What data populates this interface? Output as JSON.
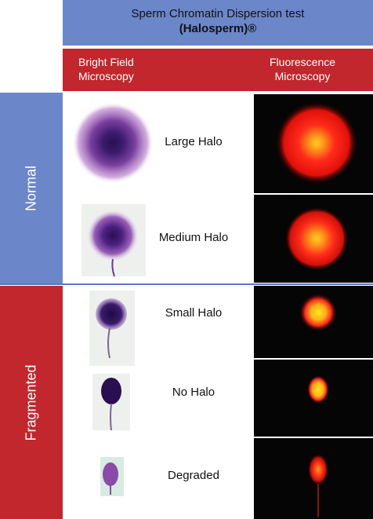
{
  "title": {
    "line1": "Sperm Chromatin Dispersion test",
    "line2": "(Halosperm)®"
  },
  "columns": {
    "bright_field": [
      "Bright Field",
      "Microscopy"
    ],
    "fluorescence": [
      "Fluorescence",
      "Microscopy"
    ]
  },
  "groups": {
    "normal": "Normal",
    "fragmented": "Fragmented"
  },
  "rows": [
    {
      "label": "Large Halo"
    },
    {
      "label": "Medium Halo"
    },
    {
      "label": "Small Halo"
    },
    {
      "label": "No Halo"
    },
    {
      "label": "Degraded"
    }
  ],
  "colors": {
    "blue_band": "#6b86c9",
    "red_band": "#c1272d",
    "stain_purple": "#5a2a86",
    "fluo_red": "#ff2a1a",
    "fluo_core": "#ffd21e"
  }
}
